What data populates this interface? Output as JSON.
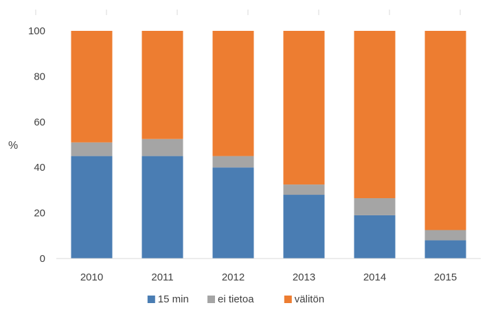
{
  "chart_data": {
    "type": "bar",
    "stacked": true,
    "title": "",
    "xlabel": "",
    "ylabel": "%",
    "ylim": [
      0,
      100
    ],
    "yticks": [
      0,
      20,
      40,
      60,
      80,
      100
    ],
    "categories": [
      "2010",
      "2011",
      "2012",
      "2013",
      "2014",
      "2015"
    ],
    "series": [
      {
        "name": "15 min",
        "color": "#4a7db3",
        "values": [
          45,
          45,
          40,
          28,
          19,
          8
        ]
      },
      {
        "name": "ei tietoa",
        "color": "#a5a5a5",
        "values": [
          6,
          7.5,
          5,
          4.5,
          7.5,
          4.5
        ]
      },
      {
        "name": "välitön",
        "color": "#ed7d31",
        "values": [
          49,
          47.5,
          55,
          67.5,
          73.5,
          87.5
        ]
      }
    ],
    "grid": false,
    "legend_position": "bottom"
  }
}
